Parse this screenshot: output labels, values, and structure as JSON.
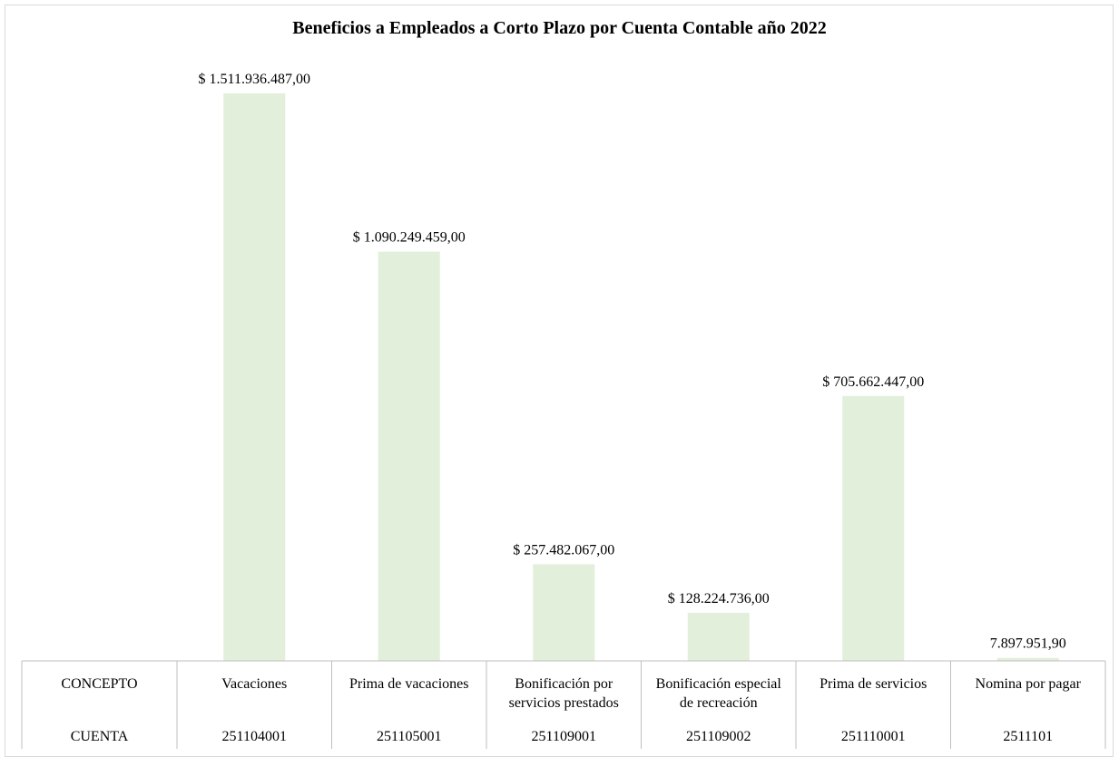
{
  "chart_data": {
    "type": "bar",
    "title": "Beneficios a Empleados a Corto Plazo por Cuenta Contable año 2022",
    "xlabel": "",
    "ylabel": "",
    "table_row_headers": [
      "CONCEPTO",
      "CUENTA"
    ],
    "categories": [
      "Vacaciones",
      "Prima de vacaciones",
      "Bonificación por servicios prestados",
      "Bonificación especial de recreación",
      "Prima de servicios",
      "Nomina por pagar"
    ],
    "category_lines": [
      [
        "Vacaciones"
      ],
      [
        "Prima de vacaciones"
      ],
      [
        "Bonificación por",
        "servicios prestados"
      ],
      [
        "Bonificación especial",
        "de recreación"
      ],
      [
        "Prima de servicios"
      ],
      [
        "Nomina por pagar"
      ]
    ],
    "accounts": [
      "251104001",
      "251105001",
      "251109001",
      "251109002",
      "251110001",
      "2511101"
    ],
    "values": [
      1511936487.0,
      1090249459.0,
      257482067.0,
      128224736.0,
      705662447.0,
      7897951.9
    ],
    "data_labels": [
      "$ 1.511.936.487,00",
      "$ 1.090.249.459,00",
      "$ 257.482.067,00",
      "$ 128.224.736,00",
      "$ 705.662.447,00",
      "7.897.951,90"
    ],
    "ylim": [
      0,
      1511936487.0
    ],
    "grid": false,
    "legend": "none",
    "bar_color": "#e2efda",
    "table_border_color": "#bfbfbf"
  }
}
